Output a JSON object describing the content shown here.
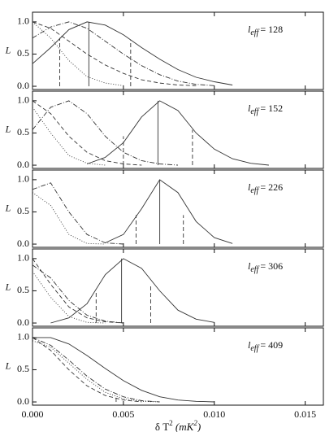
{
  "chart_data": [
    {
      "type": "line",
      "ylabel": "L",
      "annotation": {
        "symbol": "l",
        "subscript": "eff",
        "text": "= 128"
      },
      "xlim": [
        0,
        0.016
      ],
      "ylim": [
        -0.05,
        1.15
      ],
      "yticks": [
        {
          "value": 0,
          "label": "0.0"
        },
        {
          "value": 0.5,
          "label": "0.5"
        },
        {
          "value": 1,
          "label": "1.0"
        }
      ],
      "x": [
        0,
        0.001,
        0.002,
        0.003,
        0.004,
        0.005,
        0.006,
        0.007,
        0.008,
        0.009,
        0.01,
        0.011,
        0.012,
        0.013,
        0.014,
        0.015,
        0.016
      ],
      "series": [
        {
          "color": "#333333",
          "dash": "solid",
          "values": [
            0.35,
            0.6,
            0.88,
            1.0,
            0.95,
            0.8,
            0.6,
            0.42,
            0.26,
            0.14,
            0.07,
            0.02,
            null,
            null,
            null,
            null,
            null
          ]
        },
        {
          "color": "#333333",
          "dash": "dashdot",
          "values": [
            0.75,
            0.92,
            1.0,
            0.9,
            0.7,
            0.5,
            0.32,
            0.18,
            0.08,
            0.03,
            0.01,
            null,
            null,
            null,
            null,
            null,
            null
          ]
        },
        {
          "color": "#333333",
          "dash": "dash",
          "values": [
            1.0,
            0.9,
            0.7,
            0.5,
            0.33,
            0.2,
            0.1,
            0.05,
            0.02,
            0.01,
            null,
            null,
            null,
            null,
            null,
            null,
            null
          ]
        },
        {
          "color": "#333333",
          "dash": "dot",
          "values": [
            1.0,
            0.75,
            0.4,
            0.15,
            0.05,
            0.01,
            null,
            null,
            null,
            null,
            null,
            null,
            null,
            null,
            null,
            null,
            null
          ]
        }
      ],
      "vlines": [
        {
          "x": 0.0031,
          "height": 1.0,
          "dash": "solid"
        },
        {
          "x": 0.0015,
          "height": 0.75,
          "dash": "dash"
        },
        {
          "x": 0.0054,
          "height": 0.72,
          "dash": "dash"
        }
      ]
    },
    {
      "type": "line",
      "ylabel": "L",
      "annotation": {
        "symbol": "l",
        "subscript": "eff",
        "text": "= 152"
      },
      "xlim": [
        0,
        0.016
      ],
      "ylim": [
        -0.05,
        1.15
      ],
      "yticks": [
        {
          "value": 0,
          "label": "0.0"
        },
        {
          "value": 0.5,
          "label": "0.5"
        },
        {
          "value": 1,
          "label": "1.0"
        }
      ],
      "x": [
        0,
        0.001,
        0.002,
        0.003,
        0.004,
        0.005,
        0.006,
        0.007,
        0.008,
        0.009,
        0.01,
        0.011,
        0.012,
        0.013,
        0.014,
        0.015,
        0.016
      ],
      "series": [
        {
          "color": "#333333",
          "dash": "solid",
          "values": [
            null,
            null,
            null,
            0.02,
            0.12,
            0.35,
            0.75,
            1.0,
            0.85,
            0.5,
            0.25,
            0.1,
            0.03,
            0.0,
            null,
            null,
            null
          ]
        },
        {
          "color": "#333333",
          "dash": "dashdot",
          "values": [
            0.55,
            0.9,
            1.0,
            0.8,
            0.45,
            0.2,
            0.07,
            0.02,
            0.0,
            null,
            null,
            null,
            null,
            null,
            null,
            null,
            null
          ]
        },
        {
          "color": "#333333",
          "dash": "dash",
          "values": [
            1.0,
            0.8,
            0.45,
            0.2,
            0.07,
            0.02,
            0.0,
            null,
            null,
            null,
            null,
            null,
            null,
            null,
            null,
            null,
            null
          ]
        },
        {
          "color": "#333333",
          "dash": "dot",
          "values": [
            0.9,
            0.5,
            0.15,
            0.03,
            0.0,
            null,
            null,
            null,
            null,
            null,
            null,
            null,
            null,
            null,
            null,
            null,
            null
          ]
        }
      ],
      "vlines": [
        {
          "x": 0.0069,
          "height": 1.0,
          "dash": "solid"
        },
        {
          "x": 0.005,
          "height": 0.45,
          "dash": "dash"
        },
        {
          "x": 0.0088,
          "height": 0.55,
          "dash": "dash"
        }
      ]
    },
    {
      "type": "line",
      "ylabel": "L",
      "annotation": {
        "symbol": "l",
        "subscript": "eff",
        "text": "= 226"
      },
      "xlim": [
        0,
        0.016
      ],
      "ylim": [
        -0.05,
        1.15
      ],
      "yticks": [
        {
          "value": 0,
          "label": "0.0"
        },
        {
          "value": 0.5,
          "label": "0.5"
        },
        {
          "value": 1,
          "label": "1.0"
        }
      ],
      "x": [
        0,
        0.001,
        0.002,
        0.003,
        0.004,
        0.005,
        0.006,
        0.007,
        0.008,
        0.009,
        0.01,
        0.011,
        0.012,
        0.013,
        0.014,
        0.015,
        0.016
      ],
      "series": [
        {
          "color": "#333333",
          "dash": "solid",
          "values": [
            null,
            null,
            null,
            null,
            0.02,
            0.15,
            0.55,
            1.0,
            0.8,
            0.35,
            0.1,
            0.01,
            null,
            null,
            null,
            null,
            null
          ]
        },
        {
          "color": "#333333",
          "dash": "dashdot",
          "values": [
            0.85,
            0.95,
            0.5,
            0.15,
            0.02,
            0.0,
            null,
            null,
            null,
            null,
            null,
            null,
            null,
            null,
            null,
            null,
            null
          ]
        },
        {
          "color": "#333333",
          "dash": "dot",
          "values": [
            0.8,
            0.6,
            0.15,
            0.01,
            0.0,
            null,
            null,
            null,
            null,
            null,
            null,
            null,
            null,
            null,
            null,
            null,
            null
          ]
        }
      ],
      "vlines": [
        {
          "x": 0.007,
          "height": 1.0,
          "dash": "solid"
        },
        {
          "x": 0.0057,
          "height": 0.45,
          "dash": "dash"
        },
        {
          "x": 0.0083,
          "height": 0.45,
          "dash": "dash"
        }
      ]
    },
    {
      "type": "line",
      "ylabel": "L",
      "annotation": {
        "symbol": "l",
        "subscript": "eff",
        "text": "= 306"
      },
      "xlim": [
        0,
        0.016
      ],
      "ylim": [
        -0.05,
        1.15
      ],
      "yticks": [
        {
          "value": 0,
          "label": "0.0"
        },
        {
          "value": 0.5,
          "label": "0.5"
        },
        {
          "value": 1,
          "label": "1.0"
        }
      ],
      "x": [
        0,
        0.001,
        0.002,
        0.003,
        0.004,
        0.005,
        0.006,
        0.007,
        0.008,
        0.009,
        0.01,
        0.011,
        0.012,
        0.013,
        0.014,
        0.015,
        0.016
      ],
      "series": [
        {
          "color": "#333333",
          "dash": "solid",
          "values": [
            null,
            0.0,
            0.08,
            0.3,
            0.75,
            1.0,
            0.85,
            0.5,
            0.2,
            0.06,
            0.01,
            null,
            null,
            null,
            null,
            null,
            null
          ]
        },
        {
          "color": "#333333",
          "dash": "dash",
          "values": [
            1.0,
            0.6,
            0.25,
            0.08,
            0.02,
            0.0,
            null,
            null,
            null,
            null,
            null,
            null,
            null,
            null,
            null,
            null,
            null
          ]
        },
        {
          "color": "#333333",
          "dash": "dashdot",
          "values": [
            0.9,
            0.7,
            0.35,
            0.12,
            0.03,
            0.0,
            null,
            null,
            null,
            null,
            null,
            null,
            null,
            null,
            null,
            null,
            null
          ]
        },
        {
          "color": "#333333",
          "dash": "dot",
          "values": [
            0.8,
            0.4,
            0.1,
            0.01,
            0.0,
            null,
            null,
            null,
            null,
            null,
            null,
            null,
            null,
            null,
            null,
            null,
            null
          ]
        }
      ],
      "vlines": [
        {
          "x": 0.0049,
          "height": 1.0,
          "dash": "solid"
        },
        {
          "x": 0.0035,
          "height": 0.5,
          "dash": "dash"
        },
        {
          "x": 0.0065,
          "height": 0.58,
          "dash": "dash"
        }
      ]
    },
    {
      "type": "line",
      "ylabel": "L",
      "annotation": {
        "symbol": "l",
        "subscript": "eff",
        "text": "= 409"
      },
      "xlim": [
        0,
        0.016
      ],
      "ylim": [
        -0.05,
        1.15
      ],
      "yticks": [
        {
          "value": 0,
          "label": "0.0"
        },
        {
          "value": 0.5,
          "label": "0.5"
        },
        {
          "value": 1,
          "label": "1.0"
        }
      ],
      "xticks": [
        {
          "value": 0,
          "label": "0.000"
        },
        {
          "value": 0.005,
          "label": "0.005"
        },
        {
          "value": 0.01,
          "label": "0.010"
        },
        {
          "value": 0.015,
          "label": "0.015"
        }
      ],
      "xlabel": [
        "δ T",
        "2",
        " (mK",
        "2",
        ")"
      ],
      "x": [
        0,
        0.001,
        0.002,
        0.003,
        0.004,
        0.005,
        0.006,
        0.007,
        0.008,
        0.009,
        0.01,
        0.011,
        0.012,
        0.013,
        0.014,
        0.015,
        0.016
      ],
      "series": [
        {
          "color": "#333333",
          "dash": "solid",
          "values": [
            1.0,
            1.0,
            0.9,
            0.72,
            0.52,
            0.33,
            0.18,
            0.08,
            0.03,
            0.01,
            0.0,
            null,
            null,
            null,
            null,
            null,
            null
          ]
        },
        {
          "color": "#333333",
          "dash": "dashdot",
          "values": [
            1.0,
            0.88,
            0.65,
            0.4,
            0.2,
            0.08,
            0.02,
            0.0,
            null,
            null,
            null,
            null,
            null,
            null,
            null,
            null,
            null
          ]
        },
        {
          "color": "#333333",
          "dash": "dash",
          "values": [
            1.0,
            0.8,
            0.5,
            0.25,
            0.1,
            0.03,
            0.0,
            null,
            null,
            null,
            null,
            null,
            null,
            null,
            null,
            null,
            null
          ]
        },
        {
          "color": "#333333",
          "dash": "dot",
          "values": [
            0.95,
            0.85,
            0.6,
            0.35,
            0.15,
            0.05,
            0.01,
            0.0,
            null,
            null,
            null,
            null,
            null,
            null,
            null,
            null,
            null
          ]
        }
      ],
      "vlines": [
        {
          "x": 0.0046,
          "height": 0.1,
          "dash": "dash"
        }
      ]
    }
  ]
}
